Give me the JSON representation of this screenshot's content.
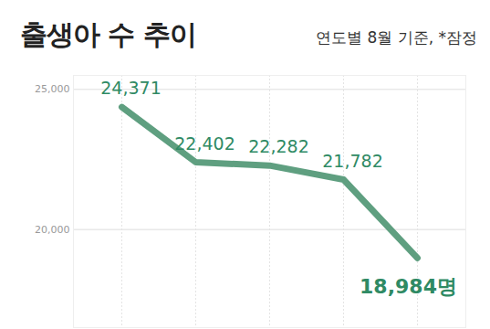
{
  "chart_data": {
    "type": "line",
    "title": "출생아 수 추이",
    "subtitle": "연도별 8월 기준, *잠정",
    "categories": [
      null,
      null,
      null,
      null,
      null
    ],
    "values": [
      24371,
      22402,
      22282,
      21782,
      18984
    ],
    "value_labels": [
      "24,371",
      "22,402",
      "22,282",
      "21,782",
      "18,984명"
    ],
    "color": "#5f9f80",
    "ylim": [
      16500,
      25500
    ],
    "yticks": [
      {
        "value": 20000,
        "label": "20,000"
      },
      {
        "value": 25000,
        "label": "25,000"
      }
    ],
    "grid": true,
    "data_labels": true,
    "tick_labels": "y"
  }
}
